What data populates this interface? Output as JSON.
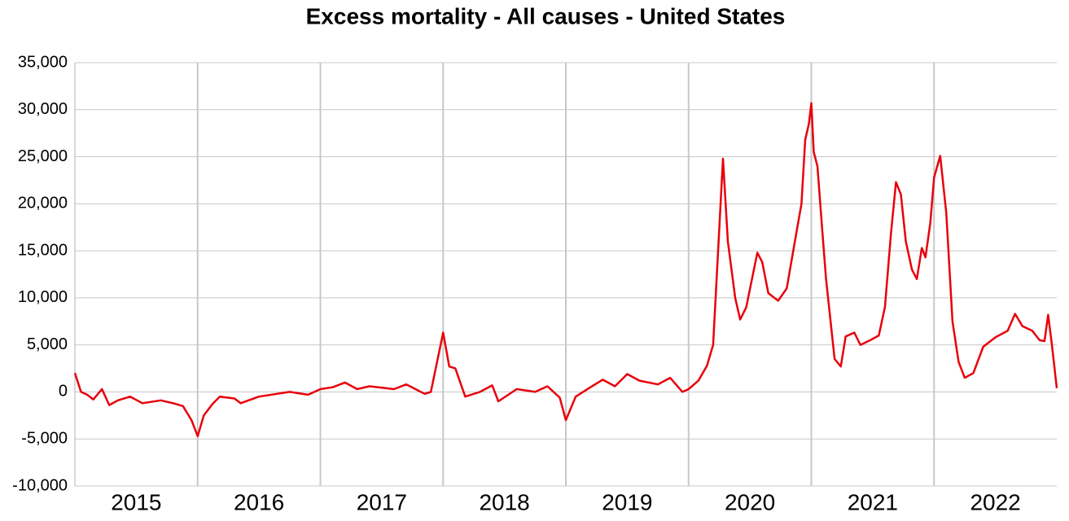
{
  "chart_data": {
    "type": "line",
    "title": "Excess mortality - All causes - United States",
    "color": "#e8000b",
    "grid": true,
    "xlim": [
      2015,
      2023
    ],
    "xticks": [
      {
        "value": 2015.5,
        "label": "2015"
      },
      {
        "value": 2016.5,
        "label": "2016"
      },
      {
        "value": 2017.5,
        "label": "2017"
      },
      {
        "value": 2018.5,
        "label": "2018"
      },
      {
        "value": 2019.5,
        "label": "2019"
      },
      {
        "value": 2020.5,
        "label": "2020"
      },
      {
        "value": 2021.5,
        "label": "2021"
      },
      {
        "value": 2022.5,
        "label": "2022"
      }
    ],
    "x_gridlines": [
      2016,
      2017,
      2018,
      2019,
      2020,
      2021,
      2022
    ],
    "ylim": [
      -10000,
      35000
    ],
    "yticks": [
      {
        "value": -10000,
        "label": "-10,000"
      },
      {
        "value": -5000,
        "label": "-5,000"
      },
      0,
      {
        "value": 5000,
        "label": "5,000"
      },
      {
        "value": 10000,
        "label": "10,000"
      },
      {
        "value": 15000,
        "label": "15,000"
      },
      {
        "value": 20000,
        "label": "20,000"
      },
      {
        "value": 25000,
        "label": "25,000"
      },
      {
        "value": 30000,
        "label": "30,000"
      },
      {
        "value": 35000,
        "label": "35,000"
      }
    ],
    "x": [
      2015.0,
      2015.05,
      2015.1,
      2015.15,
      2015.22,
      2015.28,
      2015.35,
      2015.45,
      2015.55,
      2015.7,
      2015.8,
      2015.88,
      2015.95,
      2016.0,
      2016.05,
      2016.12,
      2016.18,
      2016.3,
      2016.35,
      2016.5,
      2016.75,
      2016.9,
      2017.0,
      2017.1,
      2017.2,
      2017.3,
      2017.4,
      2017.6,
      2017.7,
      2017.85,
      2017.9,
      2018.0,
      2018.05,
      2018.1,
      2018.18,
      2018.3,
      2018.4,
      2018.45,
      2018.6,
      2018.75,
      2018.85,
      2018.95,
      2019.0,
      2019.08,
      2019.2,
      2019.3,
      2019.4,
      2019.5,
      2019.6,
      2019.75,
      2019.85,
      2019.95,
      2020.0,
      2020.08,
      2020.15,
      2020.2,
      2020.28,
      2020.32,
      2020.38,
      2020.42,
      2020.47,
      2020.56,
      2020.6,
      2020.65,
      2020.73,
      2020.8,
      2020.85,
      2020.92,
      2020.95,
      2020.98,
      2021.0,
      2021.02,
      2021.05,
      2021.09,
      2021.12,
      2021.19,
      2021.24,
      2021.28,
      2021.35,
      2021.4,
      2021.48,
      2021.55,
      2021.6,
      2021.65,
      2021.69,
      2021.73,
      2021.77,
      2021.82,
      2021.86,
      2021.9,
      2021.93,
      2021.97,
      2022.0,
      2022.05,
      2022.1,
      2022.15,
      2022.2,
      2022.25,
      2022.32,
      2022.4,
      2022.5,
      2022.6,
      2022.66,
      2022.72,
      2022.8,
      2022.83,
      2022.86,
      2022.9,
      2022.93,
      2022.96,
      2023.0
    ],
    "values": [
      2000,
      0,
      -300,
      -800,
      300,
      -1400,
      -900,
      -500,
      -1200,
      -900,
      -1200,
      -1500,
      -3000,
      -4700,
      -2500,
      -1300,
      -500,
      -700,
      -1200,
      -500,
      0,
      -300,
      300,
      500,
      1000,
      300,
      600,
      300,
      800,
      -200,
      0,
      6300,
      2700,
      2500,
      -500,
      0,
      700,
      -1000,
      300,
      0,
      600,
      -600,
      -3000,
      -500,
      500,
      1300,
      600,
      1900,
      1200,
      800,
      1500,
      0,
      300,
      1200,
      2800,
      5000,
      24800,
      16000,
      10000,
      7700,
      9000,
      14800,
      13800,
      10500,
      9700,
      11000,
      14800,
      20000,
      26800,
      28500,
      30700,
      25500,
      24000,
      17000,
      12000,
      3500,
      2700,
      5900,
      6300,
      5000,
      5500,
      6000,
      9000,
      17000,
      22300,
      21000,
      16000,
      13000,
      12000,
      15300,
      14300,
      18000,
      22800,
      25100,
      19000,
      7500,
      3200,
      1500,
      2000,
      4800,
      5800,
      6500,
      8300,
      7000,
      6500,
      6000,
      5500,
      5400,
      8200,
      5000,
      400
    ]
  }
}
